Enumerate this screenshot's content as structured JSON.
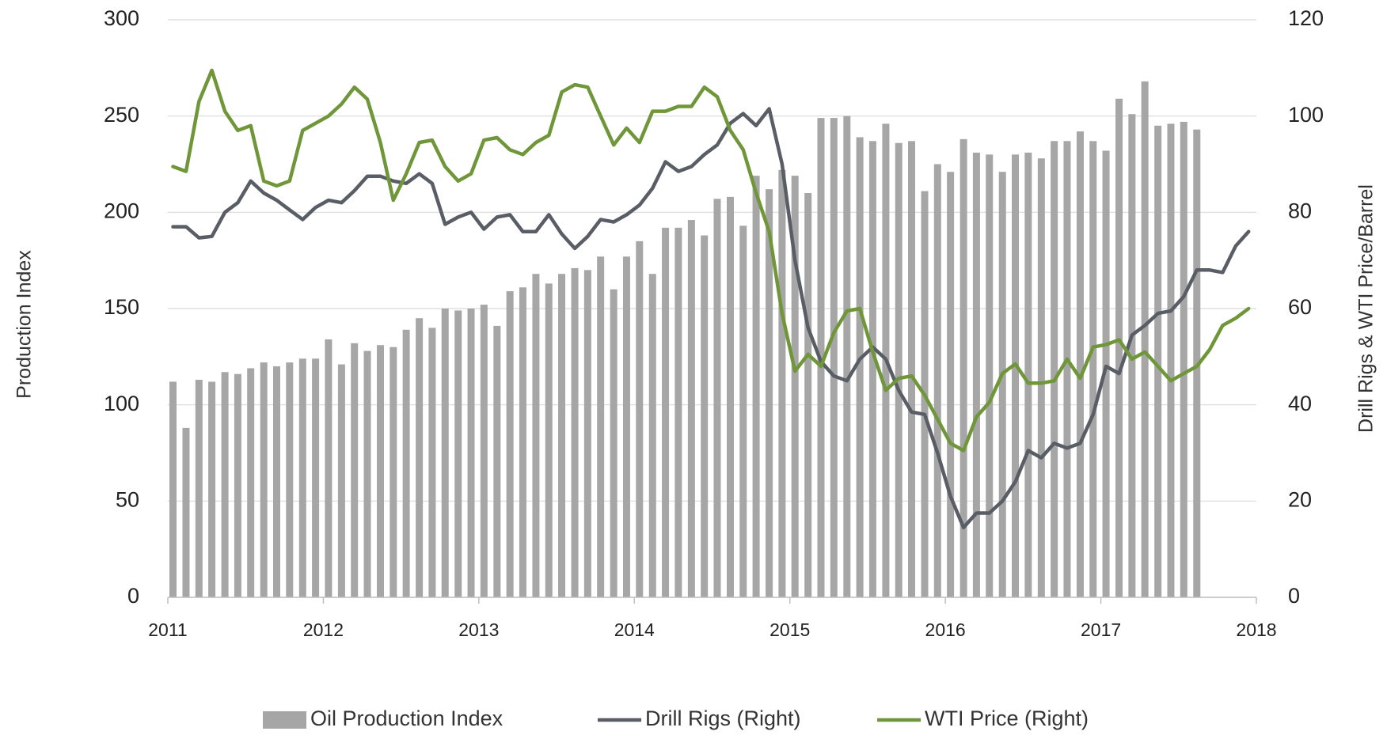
{
  "chart_data": {
    "type": "bar_line_combo",
    "y_label": "Production Index",
    "y2_label": "Drill Rigs & WTI Price/Barrel",
    "xlim": [
      2011,
      2018
    ],
    "xticks": [
      2011,
      2012,
      2013,
      2014,
      2015,
      2016,
      2017,
      2018
    ],
    "ylim": [
      0,
      300
    ],
    "yticks": [
      0,
      50,
      100,
      150,
      200,
      250,
      300
    ],
    "y2lim": [
      0,
      120
    ],
    "y2ticks": [
      0,
      20,
      40,
      60,
      80,
      100,
      120
    ],
    "grid": true,
    "legend": "bottom",
    "x": [
      2011.033,
      2011.117,
      2011.2,
      2011.283,
      2011.367,
      2011.45,
      2011.533,
      2011.617,
      2011.7,
      2011.783,
      2011.867,
      2011.95,
      2012.033,
      2012.117,
      2012.2,
      2012.283,
      2012.367,
      2012.45,
      2012.533,
      2012.617,
      2012.7,
      2012.783,
      2012.867,
      2012.95,
      2013.033,
      2013.117,
      2013.2,
      2013.283,
      2013.367,
      2013.45,
      2013.533,
      2013.617,
      2013.7,
      2013.783,
      2013.867,
      2013.95,
      2014.033,
      2014.117,
      2014.2,
      2014.283,
      2014.367,
      2014.45,
      2014.533,
      2014.617,
      2014.7,
      2014.783,
      2014.867,
      2014.95,
      2015.033,
      2015.117,
      2015.2,
      2015.283,
      2015.367,
      2015.45,
      2015.533,
      2015.617,
      2015.7,
      2015.783,
      2015.867,
      2015.95,
      2016.033,
      2016.117,
      2016.2,
      2016.283,
      2016.367,
      2016.45,
      2016.533,
      2016.617,
      2016.7,
      2016.783,
      2016.867,
      2016.95,
      2017.033,
      2017.117,
      2017.2,
      2017.283,
      2017.367,
      2017.45,
      2017.533,
      2017.617,
      2017.7,
      2017.783,
      2017.867,
      2017.95
    ],
    "series": [
      {
        "name": "Oil Production Index",
        "type": "bar",
        "color": "#a6a6a6",
        "values": [
          112,
          88,
          113,
          112,
          117,
          116,
          119,
          122,
          120,
          122,
          124,
          124,
          134,
          121,
          132,
          128,
          131,
          130,
          139,
          145,
          140,
          150,
          149,
          150,
          152,
          141,
          159,
          161,
          168,
          163,
          168,
          171,
          170,
          177,
          160,
          177,
          185,
          168,
          192,
          192,
          196,
          188,
          207,
          208,
          193,
          219,
          212,
          222,
          219,
          210,
          249,
          249,
          250,
          239,
          237,
          246,
          236,
          237,
          211,
          225,
          221,
          238,
          231,
          230,
          221,
          230,
          231,
          228,
          237,
          237,
          242,
          237,
          232,
          259,
          251,
          268,
          245,
          246,
          247,
          243,
          null,
          null,
          null,
          null
        ]
      },
      {
        "name": "Drill Rigs (Right)",
        "type": "line",
        "axis": "y2",
        "color": "#595e66",
        "values": [
          77,
          77,
          74.7,
          75,
          80,
          82,
          86.5,
          84,
          82.5,
          80.5,
          78.5,
          81,
          82.5,
          82,
          84.5,
          87.5,
          87.5,
          86.5,
          86,
          88,
          86,
          77.5,
          79,
          80,
          76.5,
          79,
          79.5,
          76,
          76,
          79.5,
          75.5,
          72.5,
          75,
          78.5,
          78,
          79.5,
          81.5,
          85,
          90.5,
          88.5,
          89.5,
          92,
          94,
          98.5,
          100.5,
          98,
          101.5,
          90,
          70,
          56,
          49,
          46,
          45,
          49.5,
          52,
          49.5,
          43,
          38.5,
          38,
          30,
          21,
          14.5,
          17.5,
          17.5,
          20,
          24,
          30.5,
          29,
          32,
          31,
          32,
          38,
          48,
          46.5,
          54.5,
          56.5,
          59,
          59.5,
          62.5,
          68,
          68,
          67.5,
          73,
          76
        ]
      },
      {
        "name": "WTI Price (Right)",
        "type": "line",
        "axis": "y2",
        "color": "#70963a",
        "values": [
          89.5,
          88.5,
          103,
          109.5,
          101,
          97,
          98,
          86.5,
          85.5,
          86.5,
          97,
          98.5,
          100,
          102.5,
          106,
          103.5,
          94.5,
          82.5,
          88,
          94.5,
          95,
          89.5,
          86.5,
          88,
          95,
          95.5,
          93,
          92,
          94.5,
          96,
          105,
          106.5,
          106,
          100,
          94,
          97.5,
          94.5,
          101,
          101,
          102,
          102,
          106,
          104,
          97,
          93,
          84,
          76,
          59,
          47,
          50.5,
          48,
          55,
          59.5,
          60,
          51,
          43,
          45.5,
          46,
          42,
          37,
          32,
          30.5,
          37.5,
          40.5,
          46.5,
          48.5,
          44.5,
          44.5,
          45,
          49.5,
          45.5,
          52,
          52.5,
          53.5,
          49.5,
          51,
          48,
          45,
          46.5,
          48,
          51.5,
          56.5,
          58,
          60
        ]
      }
    ]
  }
}
